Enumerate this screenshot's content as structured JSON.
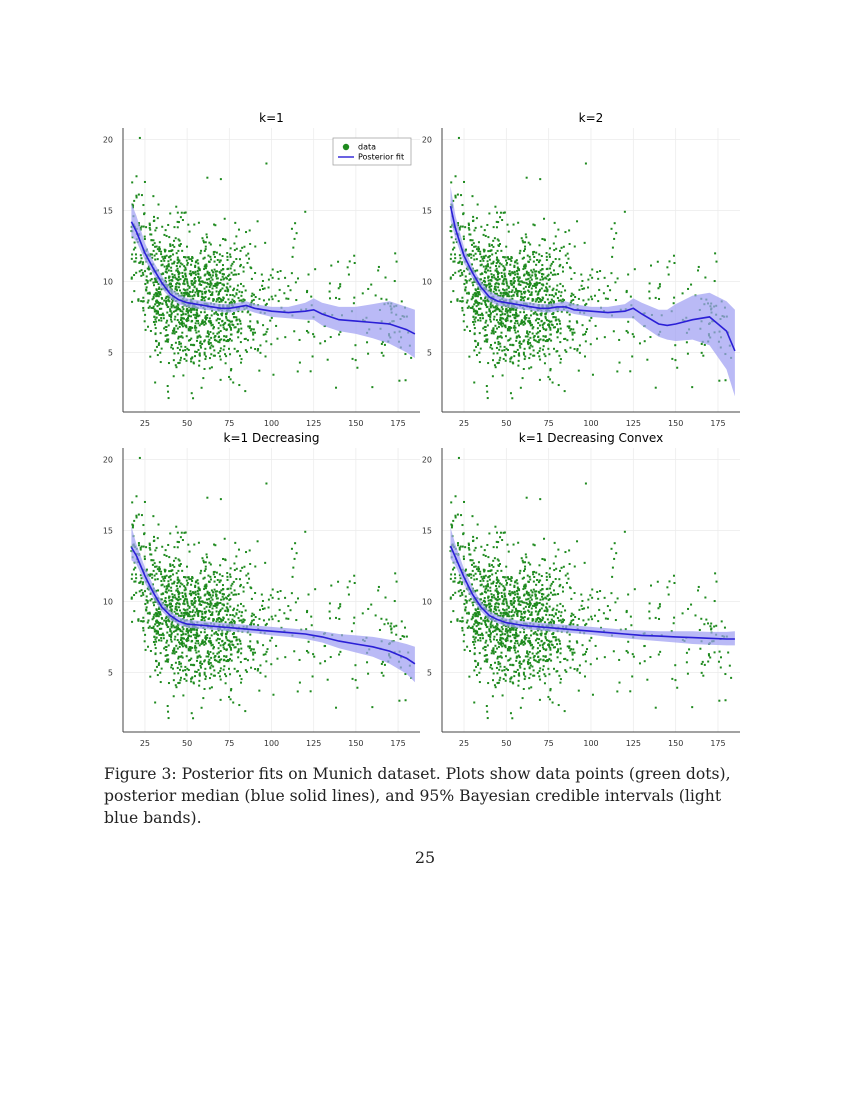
{
  "caption": "Figure 3: Posterior fits on Munich dataset. Plots show data points (green dots), posterior median (blue solid lines), and 95% Bayesian credible intervals (light blue bands).",
  "page_number": "25",
  "colors": {
    "data_points": "#1e8a1e",
    "posterior_line": "#2a1fd6",
    "credible_band": "#9f9ff2",
    "grid": "#ececec",
    "axis": "#444444"
  },
  "chart_data": [
    {
      "type": "scatter",
      "title": "k=1",
      "xlim": [
        12,
        188
      ],
      "ylim": [
        0.8,
        20.8
      ],
      "x_ticks": [
        25,
        50,
        75,
        100,
        125,
        150,
        175
      ],
      "y_ticks": [
        5,
        10,
        15,
        20
      ],
      "grid": true,
      "legend": {
        "position": "top-right",
        "entries": [
          "data",
          "Posterior fit"
        ]
      },
      "series": [
        {
          "name": "data",
          "kind": "points",
          "description": "about 1500 observations; dense cloud between x=20 and x=130, y mostly 3 to 13, sparse tail to x=185"
        },
        {
          "name": "Posterior fit",
          "kind": "line",
          "x": [
            17,
            20,
            25,
            30,
            35,
            40,
            45,
            50,
            55,
            60,
            65,
            70,
            75,
            80,
            85,
            90,
            100,
            110,
            120,
            125,
            130,
            140,
            150,
            160,
            170,
            180,
            185
          ],
          "y": [
            14.2,
            13.5,
            12.0,
            10.9,
            9.9,
            9.1,
            8.7,
            8.5,
            8.4,
            8.3,
            8.2,
            8.1,
            8.1,
            8.2,
            8.3,
            8.1,
            7.9,
            7.8,
            7.9,
            8.0,
            7.7,
            7.3,
            7.2,
            7.1,
            7.0,
            6.6,
            6.3
          ],
          "band_lower": [
            13.2,
            12.8,
            11.5,
            10.5,
            9.5,
            8.8,
            8.4,
            8.2,
            8.1,
            8.0,
            7.95,
            7.85,
            7.8,
            7.9,
            8.0,
            7.8,
            7.5,
            7.4,
            7.3,
            7.3,
            6.9,
            6.5,
            6.3,
            6.0,
            5.6,
            5.0,
            4.6
          ],
          "band_upper": [
            15.5,
            14.6,
            12.7,
            11.4,
            10.4,
            9.5,
            9.1,
            8.8,
            8.7,
            8.6,
            8.5,
            8.4,
            8.4,
            8.5,
            8.6,
            8.4,
            8.2,
            8.2,
            8.5,
            8.8,
            8.5,
            8.2,
            8.2,
            8.4,
            8.6,
            8.2,
            8.0
          ]
        }
      ]
    },
    {
      "type": "scatter",
      "title": "k=2",
      "xlim": [
        12,
        188
      ],
      "ylim": [
        0.8,
        20.8
      ],
      "x_ticks": [
        25,
        50,
        75,
        100,
        125,
        150,
        175
      ],
      "y_ticks": [
        5,
        10,
        15,
        20
      ],
      "grid": true,
      "series": [
        {
          "name": "data",
          "kind": "points",
          "description": "same observations as k=1 panel"
        },
        {
          "name": "Posterior fit",
          "kind": "line",
          "x": [
            17,
            20,
            25,
            30,
            35,
            40,
            45,
            50,
            55,
            60,
            65,
            70,
            75,
            80,
            85,
            90,
            100,
            110,
            120,
            125,
            130,
            140,
            145,
            150,
            160,
            170,
            180,
            185
          ],
          "y": [
            15.3,
            13.7,
            11.8,
            10.6,
            9.6,
            8.9,
            8.6,
            8.5,
            8.4,
            8.3,
            8.2,
            8.1,
            8.1,
            8.2,
            8.2,
            8.0,
            7.9,
            7.8,
            7.9,
            8.1,
            7.7,
            7.0,
            6.9,
            7.0,
            7.3,
            7.5,
            6.5,
            5.1
          ],
          "band_lower": [
            14.3,
            13.0,
            11.3,
            10.2,
            9.3,
            8.6,
            8.3,
            8.2,
            8.1,
            8.0,
            7.95,
            7.85,
            7.8,
            7.9,
            7.9,
            7.7,
            7.5,
            7.4,
            7.4,
            7.4,
            6.9,
            6.1,
            5.9,
            5.8,
            5.9,
            5.5,
            3.8,
            1.9
          ],
          "band_upper": [
            16.7,
            14.6,
            12.4,
            11.0,
            10.0,
            9.3,
            9.0,
            8.8,
            8.7,
            8.6,
            8.5,
            8.4,
            8.4,
            8.5,
            8.6,
            8.4,
            8.2,
            8.2,
            8.4,
            8.8,
            8.5,
            8.0,
            8.0,
            8.4,
            9.0,
            9.2,
            8.6,
            8.0
          ]
        }
      ]
    },
    {
      "type": "scatter",
      "title": "k=1 Decreasing",
      "xlim": [
        12,
        188
      ],
      "ylim": [
        0.8,
        20.8
      ],
      "x_ticks": [
        25,
        50,
        75,
        100,
        125,
        150,
        175
      ],
      "y_ticks": [
        5,
        10,
        15,
        20
      ],
      "grid": true,
      "series": [
        {
          "name": "data",
          "kind": "points",
          "description": "same observations as k=1 panel"
        },
        {
          "name": "Posterior fit",
          "kind": "line",
          "x": [
            17,
            20,
            25,
            30,
            35,
            40,
            45,
            50,
            60,
            70,
            80,
            90,
            100,
            110,
            120,
            130,
            140,
            150,
            160,
            170,
            180,
            185
          ],
          "y": [
            13.8,
            13.2,
            11.8,
            10.6,
            9.6,
            9.0,
            8.6,
            8.4,
            8.3,
            8.2,
            8.1,
            8.0,
            7.9,
            7.8,
            7.7,
            7.5,
            7.2,
            7.0,
            6.8,
            6.5,
            6.0,
            5.6
          ],
          "band_lower": [
            12.9,
            12.6,
            11.3,
            10.2,
            9.3,
            8.7,
            8.35,
            8.15,
            8.05,
            7.95,
            7.85,
            7.75,
            7.6,
            7.5,
            7.35,
            7.1,
            6.7,
            6.4,
            6.1,
            5.6,
            4.9,
            4.3
          ],
          "band_upper": [
            15.3,
            14.0,
            12.4,
            11.1,
            10.0,
            9.3,
            8.9,
            8.7,
            8.6,
            8.5,
            8.4,
            8.3,
            8.2,
            8.1,
            8.0,
            7.9,
            7.7,
            7.6,
            7.5,
            7.3,
            7.0,
            6.8
          ]
        }
      ]
    },
    {
      "type": "scatter",
      "title": "k=1 Decreasing Convex",
      "xlim": [
        12,
        188
      ],
      "ylim": [
        0.8,
        20.8
      ],
      "x_ticks": [
        25,
        50,
        75,
        100,
        125,
        150,
        175
      ],
      "y_ticks": [
        5,
        10,
        15,
        20
      ],
      "grid": true,
      "series": [
        {
          "name": "data",
          "kind": "points",
          "description": "same observations as k=1 panel"
        },
        {
          "name": "Posterior fit",
          "kind": "line",
          "x": [
            17,
            20,
            25,
            30,
            35,
            40,
            45,
            50,
            60,
            70,
            80,
            90,
            100,
            110,
            120,
            130,
            140,
            150,
            160,
            170,
            180,
            185
          ],
          "y": [
            13.9,
            13.1,
            11.7,
            10.5,
            9.6,
            9.0,
            8.7,
            8.5,
            8.3,
            8.2,
            8.1,
            8.0,
            7.9,
            7.8,
            7.7,
            7.6,
            7.55,
            7.5,
            7.45,
            7.4,
            7.35,
            7.35
          ],
          "band_lower": [
            13.0,
            12.5,
            11.2,
            10.1,
            9.3,
            8.7,
            8.45,
            8.25,
            8.05,
            7.95,
            7.85,
            7.75,
            7.65,
            7.5,
            7.4,
            7.3,
            7.2,
            7.1,
            7.0,
            6.95,
            6.9,
            6.9
          ],
          "band_upper": [
            15.2,
            14.0,
            12.3,
            11.0,
            10.0,
            9.3,
            9.0,
            8.8,
            8.6,
            8.5,
            8.4,
            8.3,
            8.2,
            8.1,
            8.0,
            7.95,
            7.9,
            7.9,
            7.9,
            7.85,
            7.85,
            7.9
          ]
        }
      ]
    }
  ]
}
